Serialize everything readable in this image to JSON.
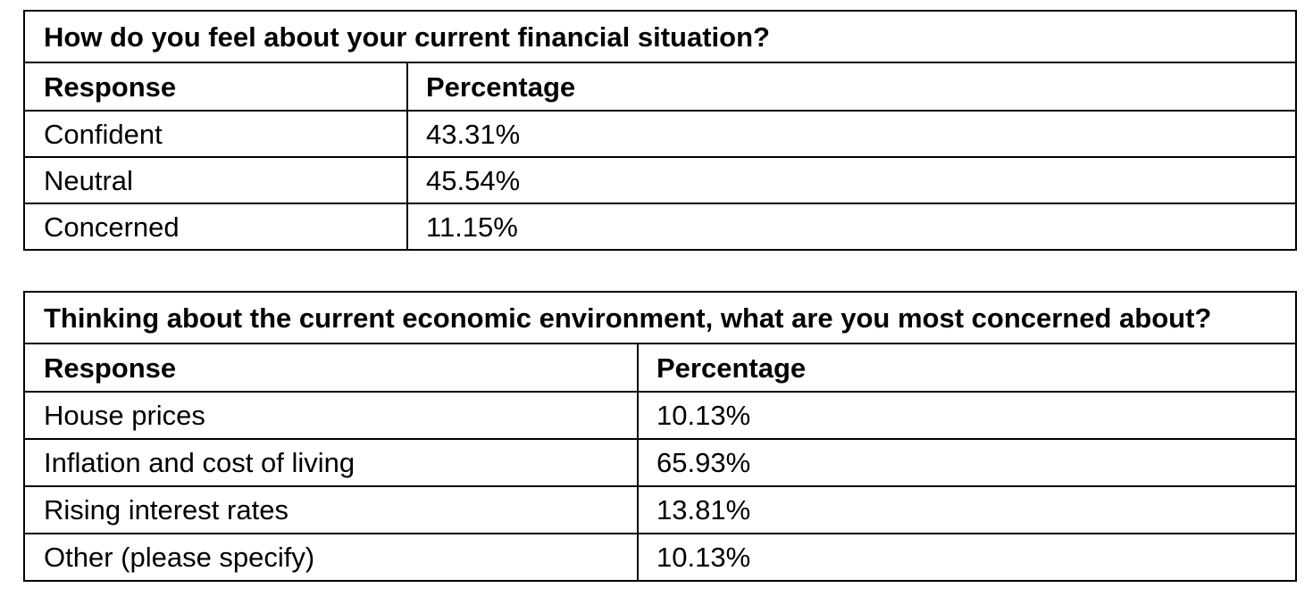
{
  "tables": [
    {
      "title": "How do you feel about your current financial situation?",
      "headers": [
        "Response",
        "Percentage"
      ],
      "rows": [
        [
          "Confident",
          "43.31%"
        ],
        [
          "Neutral",
          "45.54%"
        ],
        [
          "Concerned",
          "11.15%"
        ]
      ]
    },
    {
      "title": "Thinking about the current economic environment, what are you most concerned about?",
      "headers": [
        "Response",
        "Percentage"
      ],
      "rows": [
        [
          "House prices",
          "10.13%"
        ],
        [
          "Inflation and cost of living",
          "65.93%"
        ],
        [
          "Rising interest rates",
          "13.81%"
        ],
        [
          "Other (please specify)",
          "10.13%"
        ]
      ]
    }
  ]
}
